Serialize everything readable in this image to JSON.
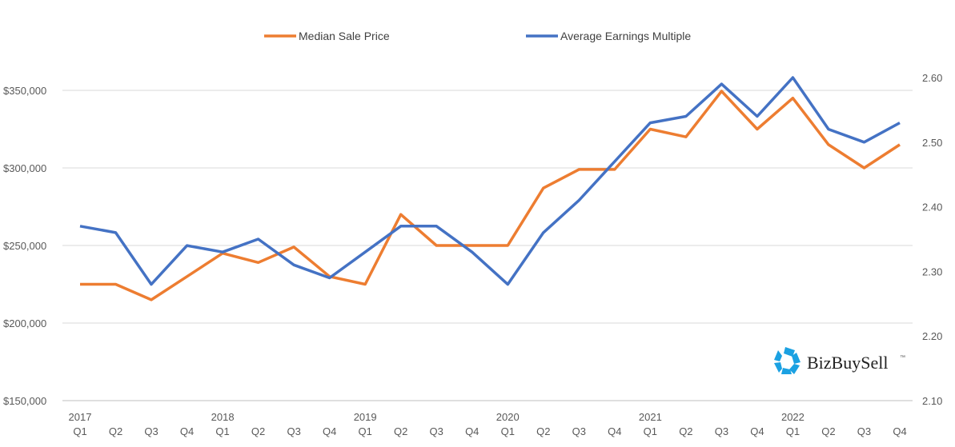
{
  "chart_data": {
    "type": "line",
    "title": "",
    "x": [
      "Q1",
      "Q2",
      "Q3",
      "Q4",
      "Q1",
      "Q2",
      "Q3",
      "Q4",
      "Q1",
      "Q2",
      "Q3",
      "Q4",
      "Q1",
      "Q2",
      "Q3",
      "Q4",
      "Q1",
      "Q2",
      "Q3",
      "Q4",
      "Q1",
      "Q2",
      "Q3",
      "Q4"
    ],
    "years": [
      {
        "label": "2017",
        "index": 0
      },
      {
        "label": "2018",
        "index": 4
      },
      {
        "label": "2019",
        "index": 8
      },
      {
        "label": "2020",
        "index": 12
      },
      {
        "label": "2021",
        "index": 16
      },
      {
        "label": "2022",
        "index": 20
      }
    ],
    "series": [
      {
        "name": "Median Sale Price",
        "axis": "left",
        "color": "#ED7D31",
        "values": [
          225000,
          225000,
          215000,
          230000,
          245000,
          239000,
          249000,
          230000,
          225000,
          270000,
          250000,
          250000,
          250000,
          287000,
          299000,
          299000,
          325000,
          320000,
          349500,
          325000,
          345000,
          315000,
          300000,
          315000
        ]
      },
      {
        "name": "Average Earnings Multiple",
        "axis": "right",
        "color": "#4472C4",
        "values": [
          2.37,
          2.36,
          2.28,
          2.34,
          2.33,
          2.35,
          2.31,
          2.29,
          2.33,
          2.37,
          2.37,
          2.33,
          2.28,
          2.36,
          2.41,
          2.47,
          2.53,
          2.54,
          2.59,
          2.54,
          2.6,
          2.52,
          2.5,
          2.53
        ]
      }
    ],
    "left_axis": {
      "ylim": [
        150000,
        350000
      ],
      "ticks": [
        "$150,000",
        "$200,000",
        "$250,000",
        "$300,000",
        "$350,000"
      ],
      "tick_values": [
        150000,
        200000,
        250000,
        300000,
        350000
      ]
    },
    "right_axis": {
      "ylim": [
        2.1,
        2.6
      ],
      "ticks": [
        "2.10",
        "2.20",
        "2.30",
        "2.40",
        "2.50",
        "2.60"
      ],
      "tick_values": [
        2.1,
        2.2,
        2.3,
        2.4,
        2.5,
        2.6
      ]
    },
    "grid": true,
    "legend_position": "top-center"
  },
  "logo": {
    "text": "BizBuySell",
    "tm": "™"
  }
}
